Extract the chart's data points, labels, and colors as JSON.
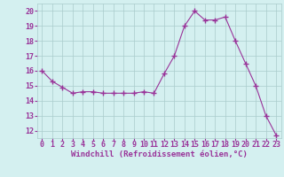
{
  "x": [
    0,
    1,
    2,
    3,
    4,
    5,
    6,
    7,
    8,
    9,
    10,
    11,
    12,
    13,
    14,
    15,
    16,
    17,
    18,
    19,
    20,
    21,
    22,
    23
  ],
  "y": [
    16.0,
    15.3,
    14.9,
    14.5,
    14.6,
    14.6,
    14.5,
    14.5,
    14.5,
    14.5,
    14.6,
    14.5,
    15.8,
    17.0,
    19.0,
    20.0,
    19.4,
    19.4,
    19.6,
    18.0,
    16.5,
    15.0,
    13.0,
    11.7
  ],
  "line_color": "#993399",
  "marker": "+",
  "marker_size": 4,
  "marker_lw": 1.0,
  "bg_color": "#d4f0f0",
  "grid_color": "#aacccc",
  "xlabel": "Windchill (Refroidissement éolien,°C)",
  "xlabel_color": "#993399",
  "yticks": [
    12,
    13,
    14,
    15,
    16,
    17,
    18,
    19,
    20
  ],
  "xlim": [
    -0.5,
    23.5
  ],
  "ylim": [
    11.5,
    20.5
  ],
  "tick_fontsize": 6.0,
  "xlabel_fontsize": 6.5,
  "line_width": 0.8
}
